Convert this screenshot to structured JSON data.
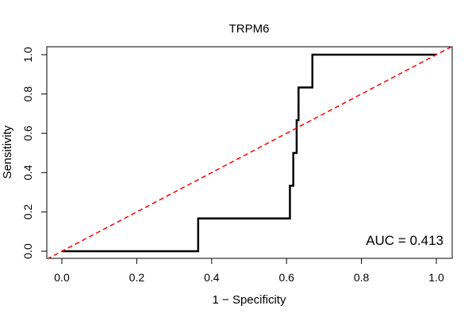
{
  "chart_data": {
    "type": "line",
    "title": "TRPM6",
    "xlabel": "1 − Specificity",
    "ylabel": "Sensitivity",
    "xlim": [
      0,
      1
    ],
    "ylim": [
      0,
      1
    ],
    "x_ticks": [
      0,
      0.2,
      0.4,
      0.6,
      0.8,
      1
    ],
    "x_tick_labels": [
      "0.0",
      "0.2",
      "0.4",
      "0.6",
      "0.8",
      "1.0"
    ],
    "y_ticks": [
      0,
      0.2,
      0.4,
      0.6,
      0.8,
      1
    ],
    "y_tick_labels": [
      "0.0",
      "0.2",
      "0.4",
      "0.6",
      "0.8",
      "1.0"
    ],
    "grid": false,
    "annotation": "AUC = 0.413",
    "series": [
      {
        "name": "ROC curve",
        "color": "#000000",
        "style": "solid",
        "x": [
          0,
          0.364,
          0.364,
          0.609,
          0.609,
          0.618,
          0.618,
          0.627,
          0.627,
          0.632,
          0.632,
          0.669,
          0.669,
          1.0
        ],
        "y": [
          0,
          0,
          0.167,
          0.167,
          0.333,
          0.333,
          0.5,
          0.5,
          0.667,
          0.667,
          0.833,
          0.833,
          1.0,
          1.0
        ]
      },
      {
        "name": "Reference line",
        "color": "#ff0000",
        "style": "dashed",
        "x": [
          -0.04,
          1.04
        ],
        "y": [
          -0.04,
          1.04
        ]
      }
    ]
  }
}
